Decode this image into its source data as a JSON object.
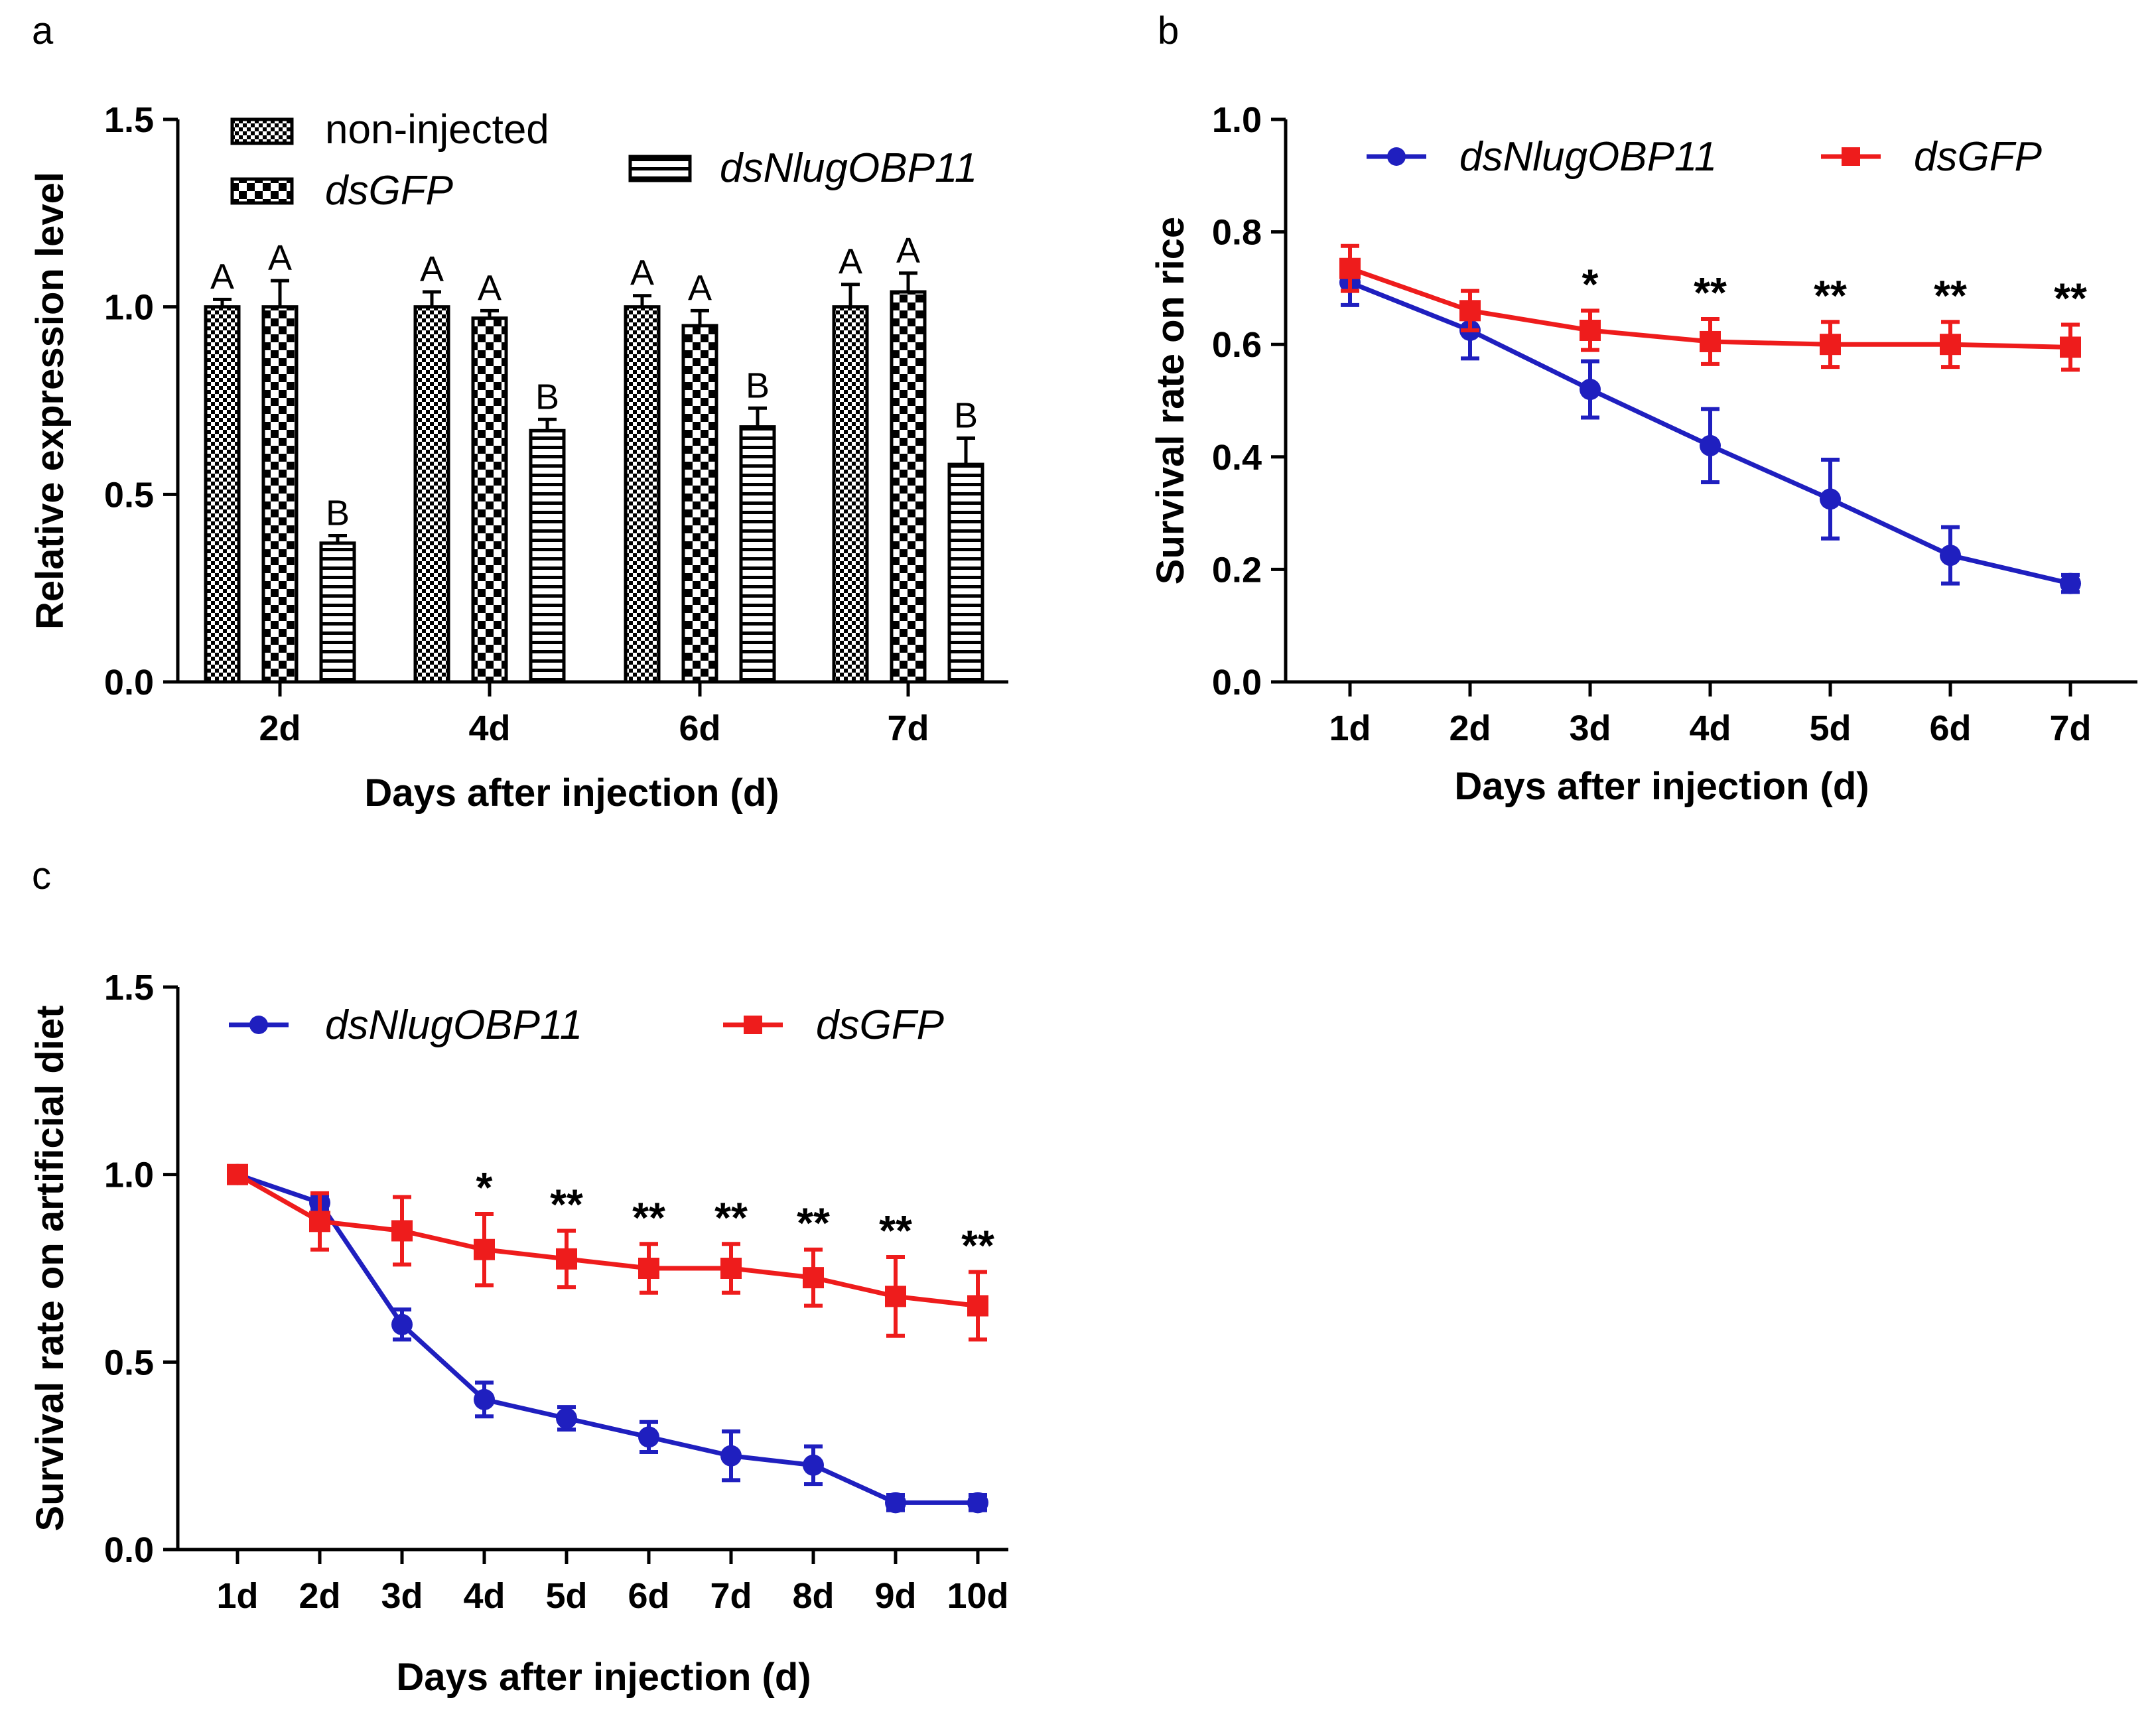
{
  "chart_data": [
    {
      "panel": "a",
      "type": "bar",
      "xlabel": "Days after injection (d)",
      "ylabel": "Relative expression level",
      "ylim": [
        0,
        1.5
      ],
      "yticks": [
        "0.0",
        "0.5",
        "1.0",
        "1.5"
      ],
      "categories": [
        "2d",
        "4d",
        "6d",
        "7d"
      ],
      "series": [
        {
          "name": "non-injected",
          "italic": false,
          "pattern": "checker-small",
          "values": [
            1.0,
            1.0,
            1.0,
            1.0
          ],
          "errors": [
            0.02,
            0.04,
            0.03,
            0.06
          ],
          "labels": [
            "A",
            "A",
            "A",
            "A"
          ]
        },
        {
          "name": "dsGFP",
          "italic": true,
          "pattern": "checker-large",
          "values": [
            1.0,
            0.97,
            0.95,
            1.04
          ],
          "errors": [
            0.07,
            0.02,
            0.04,
            0.05
          ],
          "labels": [
            "A",
            "A",
            "A",
            "A"
          ]
        },
        {
          "name": "dsNlugOBP11",
          "italic": true,
          "pattern": "hstripes",
          "values": [
            0.37,
            0.67,
            0.68,
            0.58
          ],
          "errors": [
            0.02,
            0.03,
            0.05,
            0.07
          ],
          "labels": [
            "B",
            "B",
            "B",
            "B"
          ]
        }
      ]
    },
    {
      "panel": "b",
      "type": "line",
      "xlabel": "Days after injection (d)",
      "ylabel": "Survival rate on rice",
      "ylim": [
        0,
        1.0
      ],
      "yticks": [
        "0.0",
        "0.2",
        "0.4",
        "0.6",
        "0.8",
        "1.0"
      ],
      "categories": [
        "1d",
        "2d",
        "3d",
        "4d",
        "5d",
        "6d",
        "7d"
      ],
      "series": [
        {
          "name": "dsNlugOBP11",
          "color": "#1f1fbf",
          "marker": "circle",
          "values": [
            0.71,
            0.625,
            0.52,
            0.42,
            0.325,
            0.225,
            0.175
          ],
          "errors": [
            0.04,
            0.05,
            0.05,
            0.065,
            0.07,
            0.05,
            0.015
          ]
        },
        {
          "name": "dsGFP",
          "color": "#ee1c1c",
          "marker": "square",
          "values": [
            0.735,
            0.66,
            0.625,
            0.605,
            0.6,
            0.6,
            0.595
          ],
          "errors": [
            0.04,
            0.035,
            0.035,
            0.04,
            0.04,
            0.04,
            0.04
          ]
        }
      ],
      "significance": [
        "",
        "",
        "*",
        "**",
        "**",
        "**",
        "**"
      ]
    },
    {
      "panel": "c",
      "type": "line",
      "xlabel": "Days after injection (d)",
      "ylabel": "Survival rate on artificial diet",
      "ylim": [
        0,
        1.5
      ],
      "yticks": [
        "0.0",
        "0.5",
        "1.0",
        "1.5"
      ],
      "categories": [
        "1d",
        "2d",
        "3d",
        "4d",
        "5d",
        "6d",
        "7d",
        "8d",
        "9d",
        "10d"
      ],
      "series": [
        {
          "name": "dsNlugOBP11",
          "color": "#1f1fbf",
          "marker": "circle",
          "values": [
            1.0,
            0.925,
            0.6,
            0.4,
            0.35,
            0.3,
            0.25,
            0.225,
            0.125,
            0.125
          ],
          "errors": [
            0.01,
            0.02,
            0.04,
            0.045,
            0.03,
            0.04,
            0.065,
            0.05,
            0.02,
            0.02
          ]
        },
        {
          "name": "dsGFP",
          "color": "#ee1c1c",
          "marker": "square",
          "values": [
            1.0,
            0.875,
            0.85,
            0.8,
            0.775,
            0.75,
            0.75,
            0.725,
            0.675,
            0.65
          ],
          "errors": [
            0.01,
            0.075,
            0.09,
            0.095,
            0.075,
            0.065,
            0.065,
            0.075,
            0.105,
            0.09
          ]
        }
      ],
      "significance": [
        "",
        "",
        "",
        "*",
        "**",
        "**",
        "**",
        "**",
        "**",
        "**"
      ]
    }
  ]
}
